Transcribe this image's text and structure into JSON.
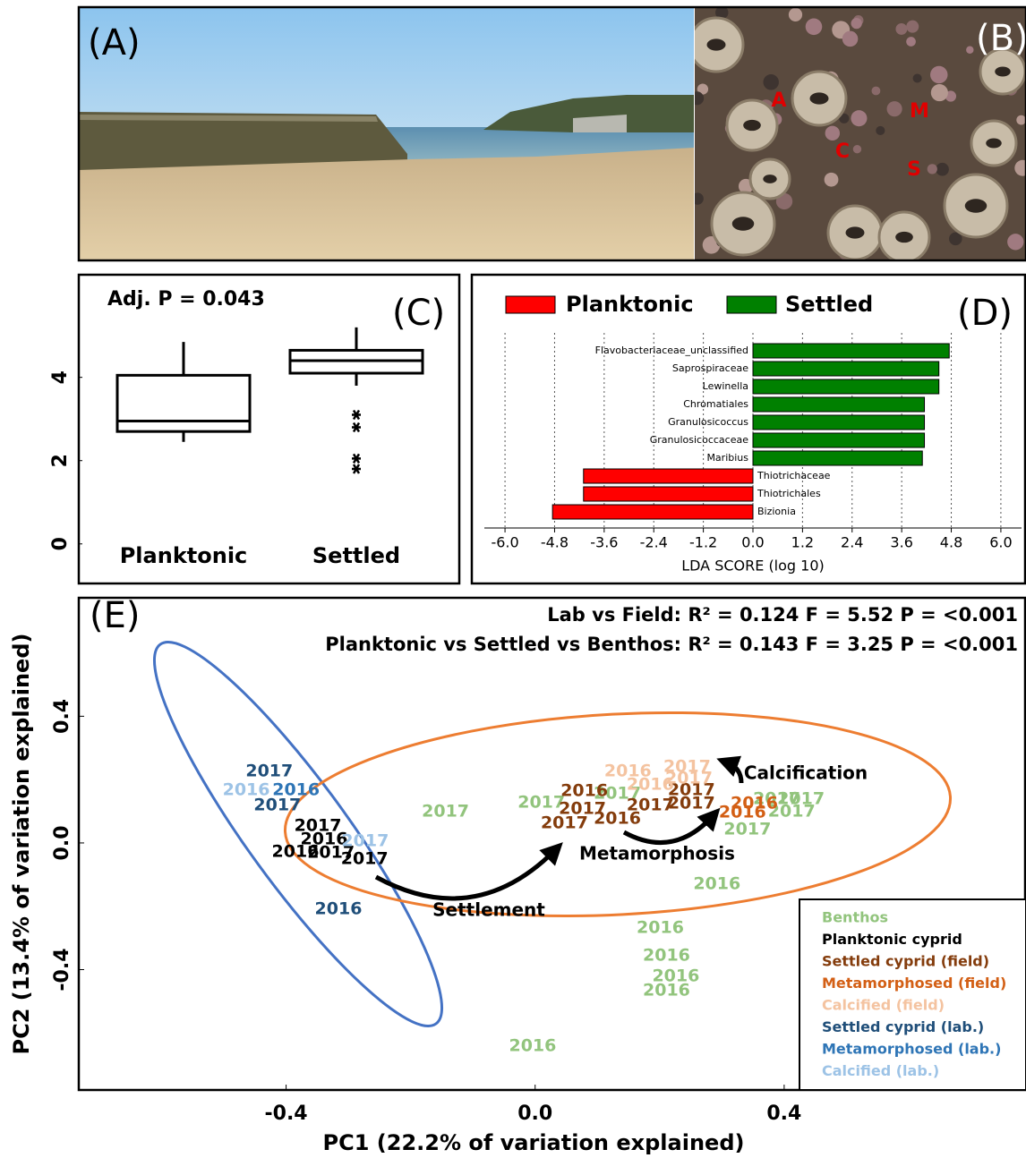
{
  "photos": {
    "beach": {
      "label": "(A)"
    },
    "barnacles": {
      "label": "(B)",
      "markers": [
        "A",
        "C",
        "M",
        "S"
      ]
    }
  },
  "chart_data": [
    {
      "type": "box",
      "panel_label": "(C)",
      "annotation": "Adj. P = 0.043",
      "categories": [
        "Planktonic",
        "Settled"
      ],
      "boxes": [
        {
          "whisker_low": 2.45,
          "q1": 2.7,
          "median": 2.95,
          "q3": 4.05,
          "whisker_high": 4.85,
          "outliers": []
        },
        {
          "whisker_low": 3.8,
          "q1": 4.1,
          "median": 4.4,
          "q3": 4.65,
          "whisker_high": 5.2,
          "outliers": [
            3.1,
            2.8,
            2.05,
            1.8
          ]
        }
      ],
      "ylim": [
        -0.8,
        6.4
      ],
      "yticks": [
        0,
        2,
        4
      ]
    },
    {
      "type": "hbar",
      "panel_label": "(D)",
      "xlabel": "LDA SCORE (log 10)",
      "series": [
        {
          "name": "Planktonic",
          "color": "#ff0000",
          "categories": [
            "Thiotrichaceae",
            "Thiotrichales",
            "Bizionia"
          ],
          "values": [
            -4.1,
            -4.1,
            -4.85
          ]
        },
        {
          "name": "Settled",
          "color": "#008000",
          "categories": [
            "Flavobacteriaceae_unclassified",
            "Saprospiraceae",
            "Lewinella",
            "Chromatiales",
            "Granulosicoccus",
            "Granulosicoccaceae",
            "Maribius"
          ],
          "values": [
            4.75,
            4.5,
            4.5,
            4.15,
            4.15,
            4.15,
            4.1
          ]
        }
      ],
      "xlim": [
        -6.5,
        6.5
      ],
      "xticks": [
        {
          "value": -6,
          "label": "-6.0"
        },
        -4.8,
        -3.6,
        -2.4,
        -1.2,
        {
          "value": 0,
          "label": "0.0"
        },
        1.2,
        2.4,
        3.6,
        4.8,
        {
          "value": 6,
          "label": "6.0"
        }
      ],
      "grid": true
    },
    {
      "type": "scatter",
      "panel_label": "(E)",
      "annotations": [
        "Lab vs Field: R² = 0.124 F = 5.52 P = <0.001",
        "Planktonic vs Settled vs Benthos: R² = 0.143 F = 3.25 P = <0.001"
      ],
      "arrow_labels": [
        "Settlement",
        "Metamorphosis",
        "Calcification"
      ],
      "xlabel": "PC1 (22.2% of variation explained)",
      "ylabel": "PC2 (13.4% of variation explained)",
      "xlim": [
        -0.733,
        0.787
      ],
      "ylim": [
        -0.78,
        0.774
      ],
      "xticks": [
        -0.4,
        {
          "value": 0,
          "label": "0.0"
        },
        0.4
      ],
      "yticks": [
        -0.4,
        {
          "value": 0,
          "label": "0.0"
        },
        0.4
      ],
      "legend": "lower right",
      "series": [
        {
          "name": "Benthos",
          "color": "#92c47d",
          "x": [
            -0.144,
            0.01,
            0.132,
            0.388,
            0.427,
            0.412,
            0.341,
            0.292,
            0.201,
            0.211,
            0.226,
            0.211,
            -0.004
          ],
          "y": [
            0.099,
            0.127,
            0.155,
            0.138,
            0.138,
            0.099,
            0.042,
            -0.13,
            -0.268,
            -0.356,
            -0.421,
            -0.466,
            -0.641
          ],
          "labels": [
            "2017",
            "2017",
            "2017",
            "2017",
            "2017",
            "2017",
            "2017",
            "2016",
            "2016",
            "2016",
            "2016",
            "2016",
            "2016"
          ]
        },
        {
          "name": "Planktonic cyprid",
          "color": "#000000",
          "x": [
            -0.349,
            -0.339,
            -0.385,
            -0.328,
            -0.274
          ],
          "y": [
            0.054,
            0.011,
            -0.028,
            -0.031,
            -0.051
          ],
          "labels": [
            "2017",
            "2016",
            "2016",
            "2017",
            "2017"
          ]
        },
        {
          "name": "Settled cyprid (field)",
          "color": "#843c0c",
          "x": [
            0.079,
            0.076,
            0.047,
            0.132,
            0.185,
            0.251,
            0.251
          ],
          "y": [
            0.164,
            0.107,
            0.062,
            0.076,
            0.119,
            0.167,
            0.124
          ],
          "labels": [
            "2016",
            "2017",
            "2017",
            "2016",
            "2017",
            "2017",
            "2017"
          ]
        },
        {
          "name": "Metamorphosed (field)",
          "color": "#d35f15",
          "x": [
            0.352,
            0.333
          ],
          "y": [
            0.124,
            0.096
          ],
          "labels": [
            "2016",
            "2016"
          ]
        },
        {
          "name": "Calcified (field)",
          "color": "#f4c3a0",
          "x": [
            0.149,
            0.244,
            0.185,
            0.247
          ],
          "y": [
            0.226,
            0.24,
            0.184,
            0.203
          ],
          "labels": [
            "2016",
            "2017",
            "2016",
            "2017"
          ]
        },
        {
          "name": "Settled cyprid (lab.)",
          "color": "#1f4e79",
          "x": [
            -0.427,
            -0.414,
            -0.316
          ],
          "y": [
            0.226,
            0.119,
            -0.209
          ],
          "labels": [
            "2017",
            "2017",
            "2016"
          ]
        },
        {
          "name": "Metamorphosed (lab.)",
          "color": "#2e75b6",
          "x": [
            -0.384
          ],
          "y": [
            0.167
          ],
          "labels": [
            "2016"
          ]
        },
        {
          "name": "Calcified (lab.)",
          "color": "#9dc3e6",
          "x": [
            -0.464,
            -0.273
          ],
          "y": [
            0.167,
            0.006
          ],
          "labels": [
            "2016",
            "2017"
          ]
        }
      ]
    }
  ]
}
